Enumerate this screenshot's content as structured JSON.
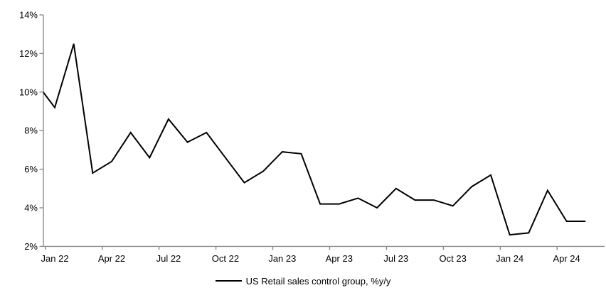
{
  "chart_data": {
    "type": "line",
    "title": "",
    "legend": "US Retail sales control group, %y/y",
    "x": [
      "Dec 21",
      "Jan 22",
      "Feb 22",
      "Mar 22",
      "Apr 22",
      "May 22",
      "Jun 22",
      "Jul 22",
      "Aug 22",
      "Sep 22",
      "Oct 22",
      "Nov 22",
      "Dec 22",
      "Jan 23",
      "Feb 23",
      "Mar 23",
      "Apr 23",
      "May 23",
      "Jun 23",
      "Jul 23",
      "Aug 23",
      "Sep 23",
      "Oct 23",
      "Nov 23",
      "Dec 23",
      "Jan 24",
      "Feb 24",
      "Mar 24",
      "Apr 24",
      "May 24"
    ],
    "values": [
      10.5,
      9.2,
      12.5,
      5.8,
      6.4,
      7.9,
      6.6,
      8.6,
      7.4,
      7.9,
      6.6,
      5.3,
      5.9,
      6.9,
      6.8,
      4.2,
      4.2,
      4.5,
      4.0,
      5.0,
      4.4,
      4.4,
      4.1,
      5.1,
      5.7,
      2.6,
      2.7,
      4.9,
      3.3,
      3.3
    ],
    "y_tick_values": [
      14,
      12,
      10,
      8,
      6,
      4,
      2
    ],
    "y_tick_labels": [
      "14%",
      "12%",
      "10%",
      "8%",
      "6%",
      "4%",
      "2%"
    ],
    "x_tick_labels": [
      "Jan 22",
      "Apr 22",
      "Jul 22",
      "Oct 22",
      "Jan 23",
      "Apr 23",
      "Jul 23",
      "Oct 23",
      "Jan 24",
      "Apr 24"
    ],
    "ylim": [
      2,
      14
    ],
    "grid": false,
    "legend_position": "bottom-center",
    "line_color": "#000000",
    "axis_color": "#8c8c8c"
  }
}
